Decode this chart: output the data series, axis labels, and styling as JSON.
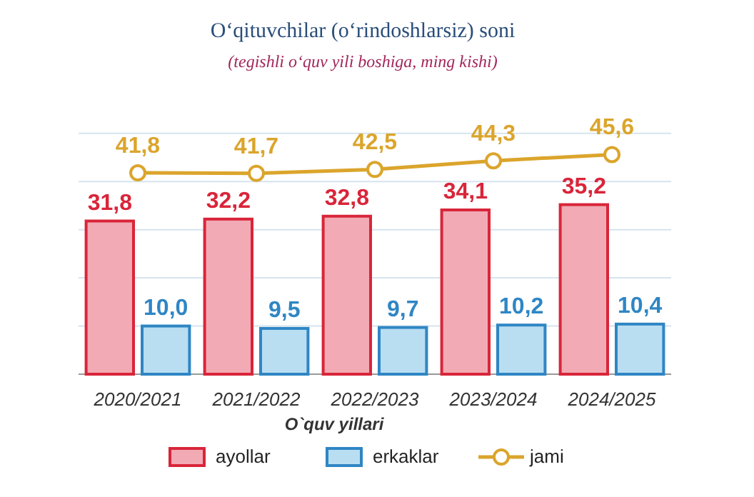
{
  "chart_data": {
    "type": "bar",
    "title": "O‘qituvchilar (o‘rindoshlarsiz) soni",
    "subtitle": "(tegishli o‘quv yili boshiga, ming kishi)",
    "xlabel": "O`quv yillari",
    "categories": [
      "2020/2021",
      "2021/2022",
      "2022/2023",
      "2023/2024",
      "2024/2025"
    ],
    "series": [
      {
        "name": "ayollar",
        "color": "#f2aab4",
        "values": [
          31.8,
          32.2,
          32.8,
          34.1,
          35.2
        ],
        "value_labels": [
          "31,8",
          "32,2",
          "32,8",
          "34,1",
          "35,2"
        ]
      },
      {
        "name": "erkaklar",
        "color": "#b9def2",
        "values": [
          10.0,
          9.5,
          9.7,
          10.2,
          10.4
        ],
        "value_labels": [
          "10,0",
          "9,5",
          "9,7",
          "10,2",
          "10,4"
        ]
      },
      {
        "name": "jami",
        "type": "line",
        "color": "#dba52c",
        "marker": "circle",
        "values": [
          41.8,
          41.7,
          42.5,
          44.3,
          45.6
        ],
        "value_labels": [
          "41,8",
          "41,7",
          "42,5",
          "44,3",
          "45,6"
        ]
      }
    ],
    "ylim": [
      0,
      51
    ],
    "yticks": [
      {
        "value": 0,
        "label": null
      },
      {
        "value": 10,
        "label": null
      },
      {
        "value": 20,
        "label": null
      },
      {
        "value": 30,
        "label": null
      },
      {
        "value": 40,
        "label": null
      },
      {
        "value": 50,
        "label": null
      }
    ],
    "tick_labels": "x",
    "grid": "y",
    "legend": "bottom"
  }
}
